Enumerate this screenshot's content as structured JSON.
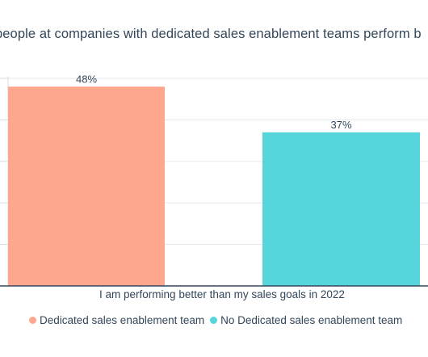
{
  "chart_data": {
    "type": "bar",
    "title": "people at companies with dedicated sales enablement teams perform b",
    "categories": [
      "I am performing better than my sales goals in 2022"
    ],
    "series": [
      {
        "name": "Dedicated sales enablement team",
        "values": [
          48
        ],
        "color": "#ffa68f",
        "label": "48%"
      },
      {
        "name": "No Dedicated sales enablement team",
        "values": [
          37
        ],
        "color": "#56d5dc",
        "label": "37%"
      }
    ],
    "ylim": [
      0,
      50
    ],
    "grid": true,
    "legend": "bottom"
  }
}
